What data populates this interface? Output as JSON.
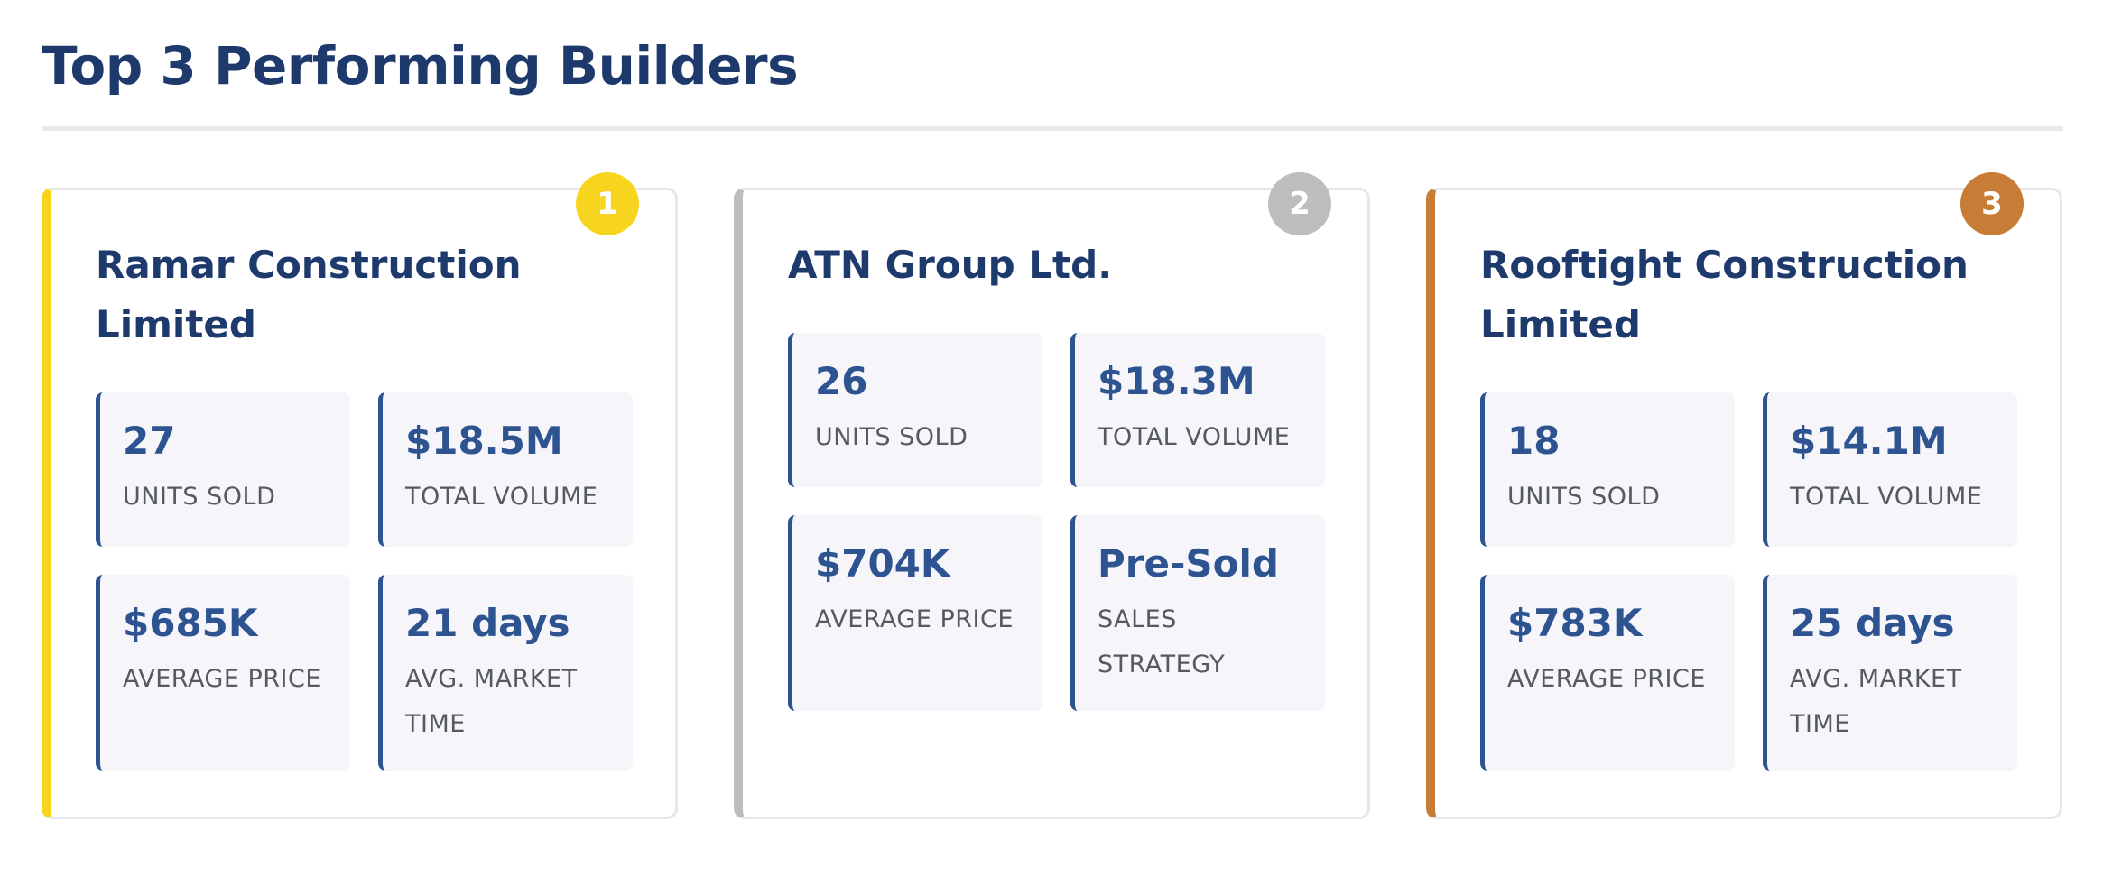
{
  "page": {
    "title": "Top 3 Performing Builders"
  },
  "colors": {
    "title": "#1e3a6c",
    "accent": "#2e5391",
    "gold": "#f7d51e",
    "silver": "#bdbdbd",
    "bronze": "#c87d36",
    "stat_background": "#f5f5fa"
  },
  "builders": [
    {
      "rank": "1",
      "name": "Ramar Construction Limited",
      "stats": [
        {
          "value": "27",
          "label": "Units Sold"
        },
        {
          "value": "$18.5M",
          "label": "Total Volume"
        },
        {
          "value": "$685K",
          "label": "Average Price"
        },
        {
          "value": "21 days",
          "label": "Avg. Market Time"
        }
      ]
    },
    {
      "rank": "2",
      "name": "ATN Group Ltd.",
      "stats": [
        {
          "value": "26",
          "label": "Units Sold"
        },
        {
          "value": "$18.3M",
          "label": "Total Volume"
        },
        {
          "value": "$704K",
          "label": "Average Price"
        },
        {
          "value": "Pre-Sold",
          "label": "Sales Strategy"
        }
      ]
    },
    {
      "rank": "3",
      "name": "Rooftight Construction Limited",
      "stats": [
        {
          "value": "18",
          "label": "Units Sold"
        },
        {
          "value": "$14.1M",
          "label": "Total Volume"
        },
        {
          "value": "$783K",
          "label": "Average Price"
        },
        {
          "value": "25 days",
          "label": "Avg. Market Time"
        }
      ]
    }
  ]
}
